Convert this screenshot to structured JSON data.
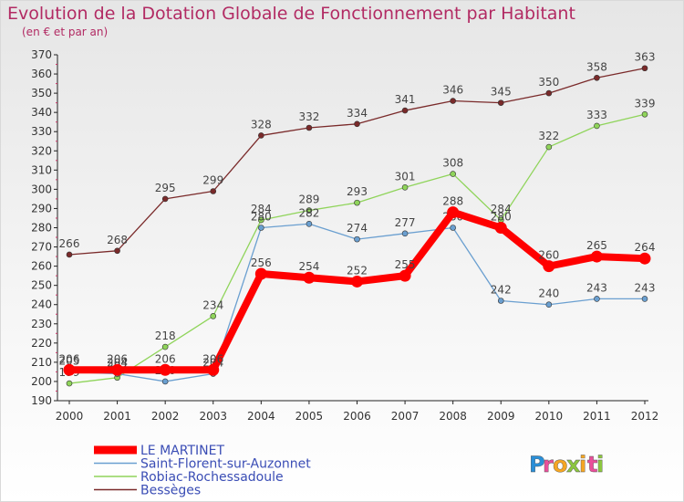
{
  "header": {
    "title": "Evolution de la Dotation Globale de Fonctionnement par Habitant",
    "subtitle": "(en € et par an)"
  },
  "logo": {
    "text": "Proxiti"
  },
  "chart_data": {
    "type": "line",
    "x": [
      "2000",
      "2001",
      "2002",
      "2003",
      "2004",
      "2005",
      "2006",
      "2007",
      "2008",
      "2009",
      "2010",
      "2011",
      "2012"
    ],
    "ylim": [
      190,
      370
    ],
    "yticks": [
      190,
      200,
      210,
      220,
      230,
      240,
      250,
      260,
      270,
      280,
      290,
      300,
      310,
      320,
      330,
      340,
      350,
      360,
      370
    ],
    "grid": false,
    "legend_placement": "bottom-left",
    "series": [
      {
        "name": "Bessèges",
        "color": "#7a2a2a",
        "width": 1.3,
        "values": [
          266,
          268,
          295,
          299,
          328,
          332,
          334,
          341,
          346,
          345,
          350,
          358,
          363
        ]
      },
      {
        "name": "Robiac-Rochessadoule",
        "color": "#8fd45a",
        "width": 1.3,
        "values": [
          199,
          202,
          218,
          234,
          284,
          289,
          293,
          301,
          308,
          284,
          322,
          333,
          339
        ]
      },
      {
        "name": "Saint-Florent-sur-Auzonnet",
        "color": "#6a9fd0",
        "width": 1.3,
        "values": [
          205,
          204,
          200,
          204,
          280,
          282,
          274,
          277,
          280,
          242,
          240,
          243,
          243
        ]
      },
      {
        "name": "LE MARTINET",
        "color": "#ff0000",
        "width": 8,
        "values": [
          206,
          206,
          206,
          206,
          256,
          254,
          252,
          255,
          288,
          280,
          260,
          265,
          264
        ]
      }
    ],
    "legend_order": [
      "LE MARTINET",
      "Saint-Florent-sur-Auzonnet",
      "Robiac-Rochessadoule",
      "Bessèges"
    ]
  }
}
